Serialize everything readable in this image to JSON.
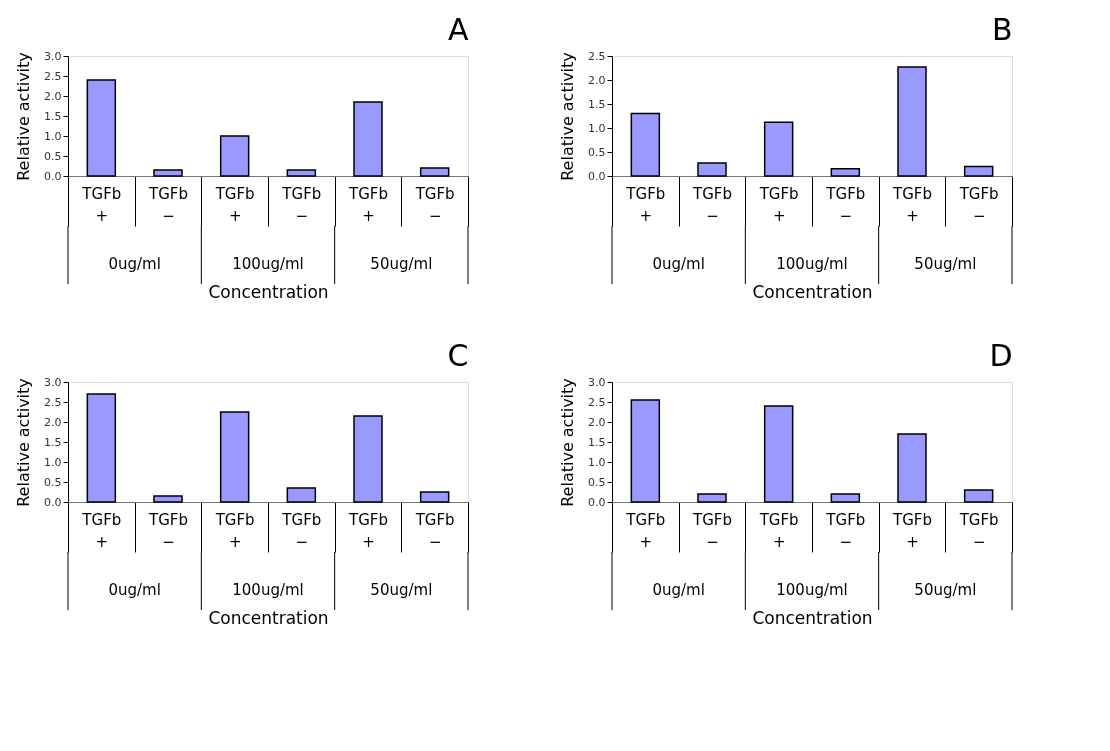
{
  "chart_data": [
    {
      "type": "bar",
      "title": "A",
      "ylabel": "Relative activity",
      "xlabel": "Concentration",
      "categories": [
        "TGFb\n+",
        "TGFb\n−",
        "TGFb\n+",
        "TGFb\n−",
        "TGFb\n+",
        "TGFb\n−"
      ],
      "values": [
        2.4,
        0.15,
        1.0,
        0.15,
        1.85,
        0.2
      ],
      "color": "#9999ff",
      "ylim": [
        0,
        3
      ],
      "yticks": [
        {
          "value": 0,
          "label": "0.0"
        },
        0.5,
        {
          "value": 1,
          "label": "1.0"
        },
        1.5,
        {
          "value": 2,
          "label": "2.0"
        },
        2.5,
        {
          "value": 3,
          "label": "3.0"
        }
      ],
      "grid": false,
      "annotations": [
        "0ug/ml",
        "100ug/ml",
        "50ug/ml"
      ]
    },
    {
      "type": "bar",
      "title": "B",
      "ylabel": "Relative activity",
      "xlabel": "Concentration",
      "categories": [
        "TGFb\n+",
        "TGFb\n−",
        "TGFb\n+",
        "TGFb\n−",
        "TGFb\n+",
        "TGFb\n−"
      ],
      "values": [
        1.3,
        0.27,
        1.12,
        0.15,
        2.27,
        0.2
      ],
      "color": "#9999ff",
      "ylim": [
        0,
        2.5
      ],
      "yticks": [
        {
          "value": 0,
          "label": "0.0"
        },
        0.5,
        {
          "value": 1,
          "label": "1.0"
        },
        1.5,
        {
          "value": 2,
          "label": "2.0"
        },
        2.5
      ],
      "grid": false,
      "annotations": [
        "0ug/ml",
        "100ug/ml",
        "50ug/ml"
      ]
    },
    {
      "type": "bar",
      "title": "C",
      "ylabel": "Relative activity",
      "xlabel": "Concentration",
      "categories": [
        "TGFb\n+",
        "TGFb\n−",
        "TGFb\n+",
        "TGFb\n−",
        "TGFb\n+",
        "TGFb\n−"
      ],
      "values": [
        2.7,
        0.15,
        2.25,
        0.35,
        2.15,
        0.25
      ],
      "color": "#9999ff",
      "ylim": [
        0,
        3
      ],
      "yticks": [
        {
          "value": 0,
          "label": "0.0"
        },
        0.5,
        {
          "value": 1,
          "label": "1.0"
        },
        1.5,
        {
          "value": 2,
          "label": "2.0"
        },
        2.5,
        {
          "value": 3,
          "label": "3.0"
        }
      ],
      "grid": false,
      "annotations": [
        "0ug/ml",
        "100ug/ml",
        "50ug/ml"
      ]
    },
    {
      "type": "bar",
      "title": "D",
      "ylabel": "Relative activity",
      "xlabel": "Concentration",
      "categories": [
        "TGFb\n+",
        "TGFb\n−",
        "TGFb\n+",
        "TGFb\n−",
        "TGFb\n+",
        "TGFb\n−"
      ],
      "values": [
        2.55,
        0.2,
        2.4,
        0.2,
        1.7,
        0.3
      ],
      "color": "#9999ff",
      "ylim": [
        0,
        3
      ],
      "yticks": [
        {
          "value": 0,
          "label": "0.0"
        },
        0.5,
        {
          "value": 1,
          "label": "1.0"
        },
        1.5,
        {
          "value": 2,
          "label": "2.0"
        },
        2.5,
        {
          "value": 3,
          "label": "3.0"
        }
      ],
      "grid": false,
      "annotations": [
        "0ug/ml",
        "100ug/ml",
        "50ug/ml"
      ]
    }
  ]
}
